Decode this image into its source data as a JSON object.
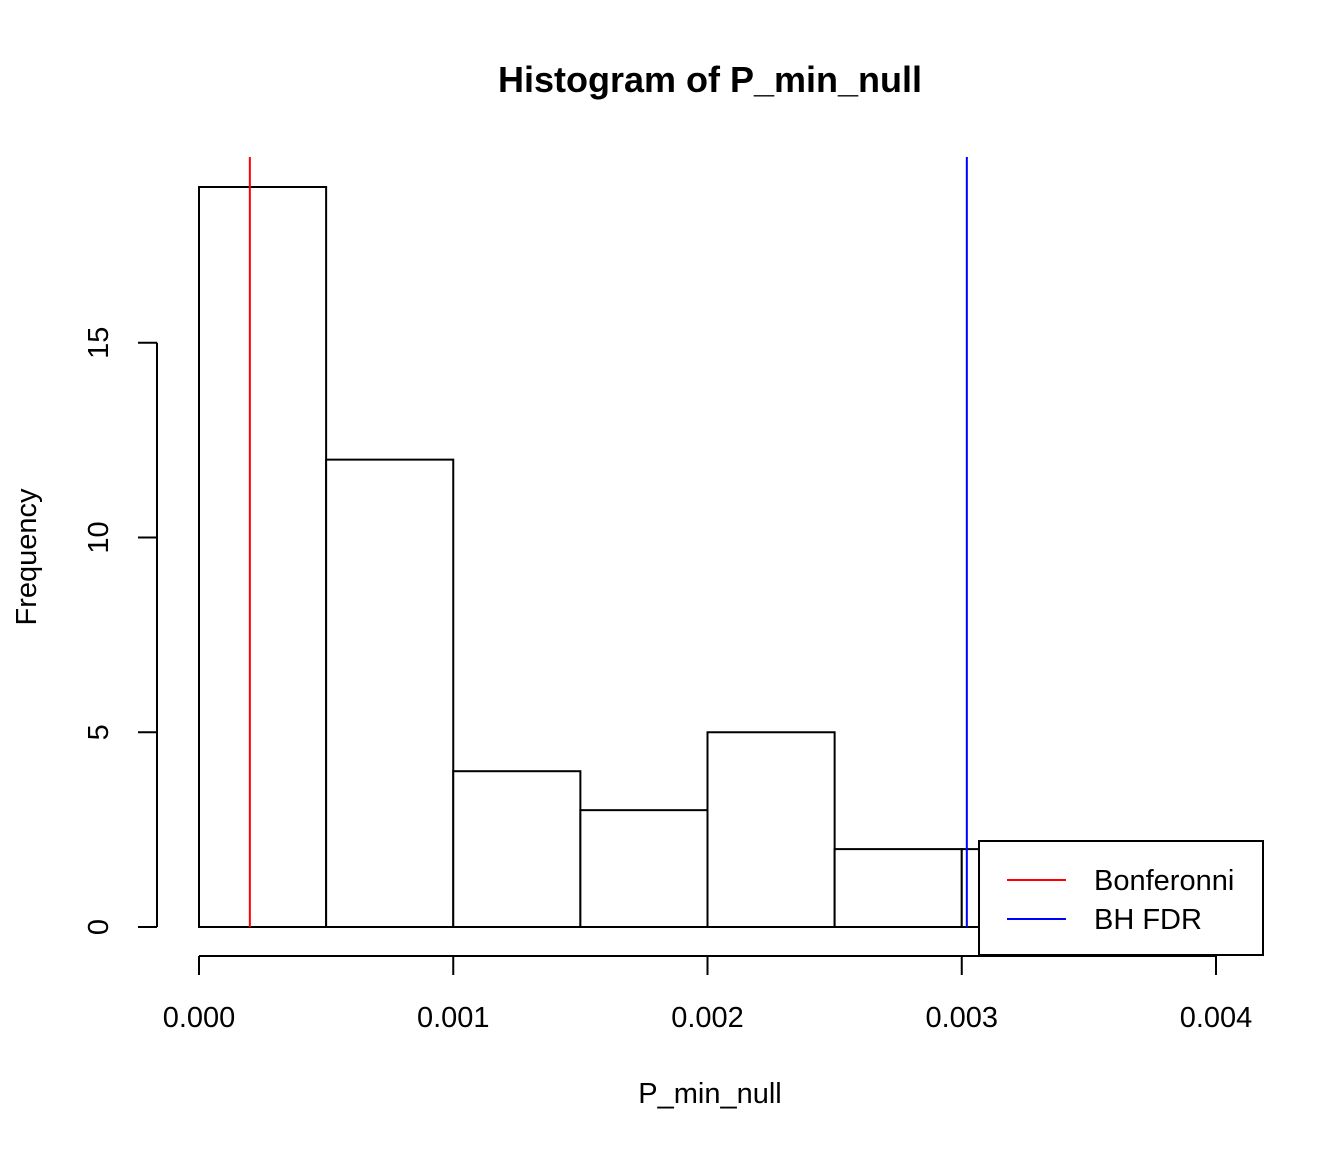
{
  "chart_data": {
    "type": "bar",
    "title": "Histogram of P_min_null",
    "xlabel": "P_min_null",
    "ylabel": "Frequency",
    "bins": [
      {
        "start": 0.0,
        "end": 0.0005,
        "count": 19
      },
      {
        "start": 0.0005,
        "end": 0.001,
        "count": 12
      },
      {
        "start": 0.001,
        "end": 0.0015,
        "count": 4
      },
      {
        "start": 0.0015,
        "end": 0.002,
        "count": 3
      },
      {
        "start": 0.002,
        "end": 0.0025,
        "count": 5
      },
      {
        "start": 0.0025,
        "end": 0.003,
        "count": 2
      },
      {
        "start": 0.003,
        "end": 0.0035,
        "count": 2
      }
    ],
    "xlim": [
      0,
      0.004
    ],
    "ylim": [
      0,
      19
    ],
    "x_ticks": [
      0.0,
      0.001,
      0.002,
      0.003,
      0.004
    ],
    "x_tick_labels": [
      "0.000",
      "0.001",
      "0.002",
      "0.003",
      "0.004"
    ],
    "y_ticks": [
      0,
      5,
      10,
      15
    ],
    "y_tick_labels": [
      "0",
      "5",
      "10",
      "15"
    ],
    "vlines": [
      {
        "name": "Bonferonni",
        "x": 0.0002,
        "color": "#ff0000"
      },
      {
        "name": "BH FDR",
        "x": 0.00302,
        "color": "#0000ff"
      }
    ],
    "legend": {
      "position": "bottom-right",
      "entries": [
        {
          "label": "Bonferonni",
          "color": "#ff0000"
        },
        {
          "label": "BH FDR",
          "color": "#0000ff"
        }
      ]
    },
    "grid": false
  }
}
